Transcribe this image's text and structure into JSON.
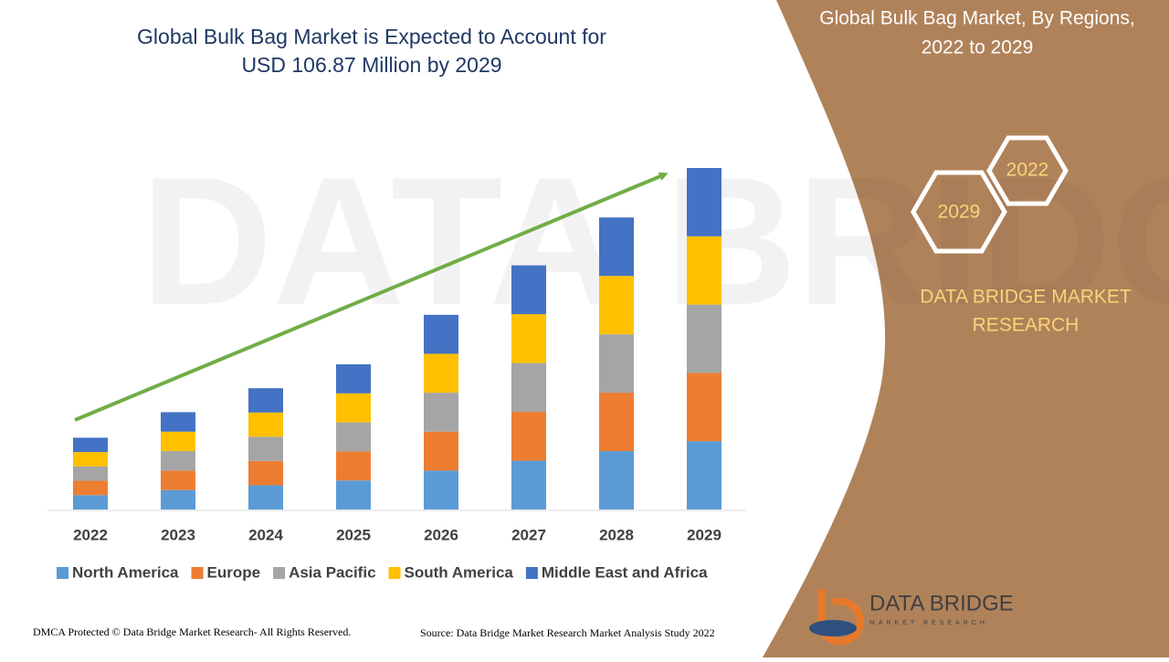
{
  "chart_data": {
    "type": "stacked-bar",
    "title": "Global Bulk Bag Market is Expected to Account for",
    "subtitle": "USD 106.87 Million by 2029",
    "categories": [
      "2022",
      "2023",
      "2024",
      "2025",
      "2026",
      "2027",
      "2028",
      "2029"
    ],
    "series": [
      {
        "name": "North America",
        "color": "#5b9bd5",
        "values": [
          4.5,
          6.1,
          7.6,
          9.1,
          12.2,
          15.3,
          18.3,
          21.4
        ]
      },
      {
        "name": "Europe",
        "color": "#ed7d31",
        "values": [
          4.5,
          6.1,
          7.6,
          9.1,
          12.2,
          15.3,
          18.3,
          21.4
        ]
      },
      {
        "name": "Asia Pacific",
        "color": "#a5a5a5",
        "values": [
          4.5,
          6.1,
          7.6,
          9.1,
          12.2,
          15.3,
          18.3,
          21.4
        ]
      },
      {
        "name": "South America",
        "color": "#ffc000",
        "values": [
          4.5,
          6.1,
          7.6,
          9.1,
          12.2,
          15.3,
          18.3,
          21.4
        ]
      },
      {
        "name": "Middle East and Africa",
        "color": "#4472c4",
        "values": [
          4.5,
          6.1,
          7.6,
          9.1,
          12.2,
          15.3,
          18.3,
          21.4
        ]
      }
    ]
  },
  "panel": {
    "title_line1": "Global Bulk Bag Market, By Regions,",
    "title_line2": "2022 to 2029",
    "hex_top": "2022",
    "hex_bottom": "2029",
    "brand_line1": "DATA BRIDGE MARKET",
    "brand_line2": "RESEARCH",
    "logo_name": "DATA BRIDGE",
    "logo_tagline": "MARKET RESEARCH"
  },
  "footer": {
    "left": "DMCA Protected © Data Bridge Market Research- All Rights Reserved.",
    "right": "Source: Data Bridge Market Research Market Analysis Study 2022"
  }
}
